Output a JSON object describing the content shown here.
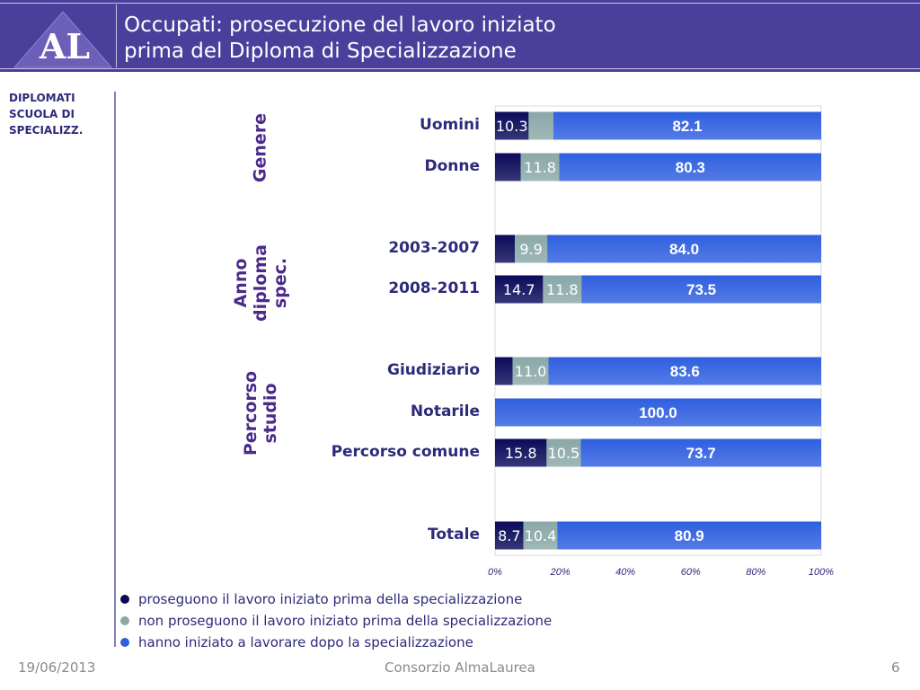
{
  "header": {
    "logo_text": "AL",
    "title_line1": "Occupati: prosecuzione del lavoro iniziato",
    "title_line2": "prima del Diploma di Specializzazione"
  },
  "sidebar": {
    "line1": "DIPLOMATI",
    "line2": "SCUOLA DI",
    "line3": "SPECIALIZZ."
  },
  "groups": [
    {
      "label": "Genere"
    },
    {
      "label": "Anno diploma spec."
    },
    {
      "label": "Percorso studio"
    }
  ],
  "legend": [
    {
      "label": "proseguono il lavoro iniziato prima della specializzazione",
      "color": "#0a0a5a"
    },
    {
      "label": "non proseguono il lavoro iniziato prima della specializzazione",
      "color": "#8aa8a8"
    },
    {
      "label": "hanno iniziato a lavorare dopo la specializzazione",
      "color": "#2f5fe0"
    }
  ],
  "footer": {
    "date": "19/06/2013",
    "org": "Consorzio AlmaLaurea",
    "page": "6"
  },
  "chart_data": {
    "type": "bar",
    "orientation": "horizontal",
    "stacked": true,
    "categories": [
      "Uomini",
      "Donne",
      "2003-2007",
      "2008-2011",
      "Giudiziario",
      "Notarile",
      "Percorso comune",
      "Totale"
    ],
    "series": [
      {
        "name": "proseguono il lavoro iniziato prima della specializzazione",
        "color": "#0a0a5a",
        "values": [
          10.3,
          7.9,
          6.1,
          14.7,
          5.4,
          0,
          15.8,
          8.7
        ],
        "labels": [
          "10.3",
          "",
          "",
          "14.7",
          "",
          "",
          "15.8",
          "8.7"
        ]
      },
      {
        "name": "non proseguono il lavoro iniziato prima della specializzazione",
        "color": "#8aa8a8",
        "values": [
          7.6,
          11.8,
          9.9,
          11.8,
          11.0,
          0,
          10.5,
          10.4
        ],
        "labels": [
          "",
          "11.8",
          "9.9",
          "11.8",
          "11.0",
          "",
          "10.5",
          "10.4"
        ]
      },
      {
        "name": "hanno iniziato a lavorare dopo la specializzazione",
        "color": "#2f5fe0",
        "values": [
          82.1,
          80.3,
          84.0,
          73.5,
          83.6,
          100.0,
          73.7,
          80.9
        ],
        "labels": [
          "82.1",
          "80.3",
          "84.0",
          "73.5",
          "83.6",
          "100.0",
          "73.7",
          "80.9"
        ]
      }
    ],
    "xlim": [
      0,
      100
    ],
    "x_ticks": [
      "0%",
      "20%",
      "40%",
      "60%",
      "80%",
      "100%"
    ]
  }
}
